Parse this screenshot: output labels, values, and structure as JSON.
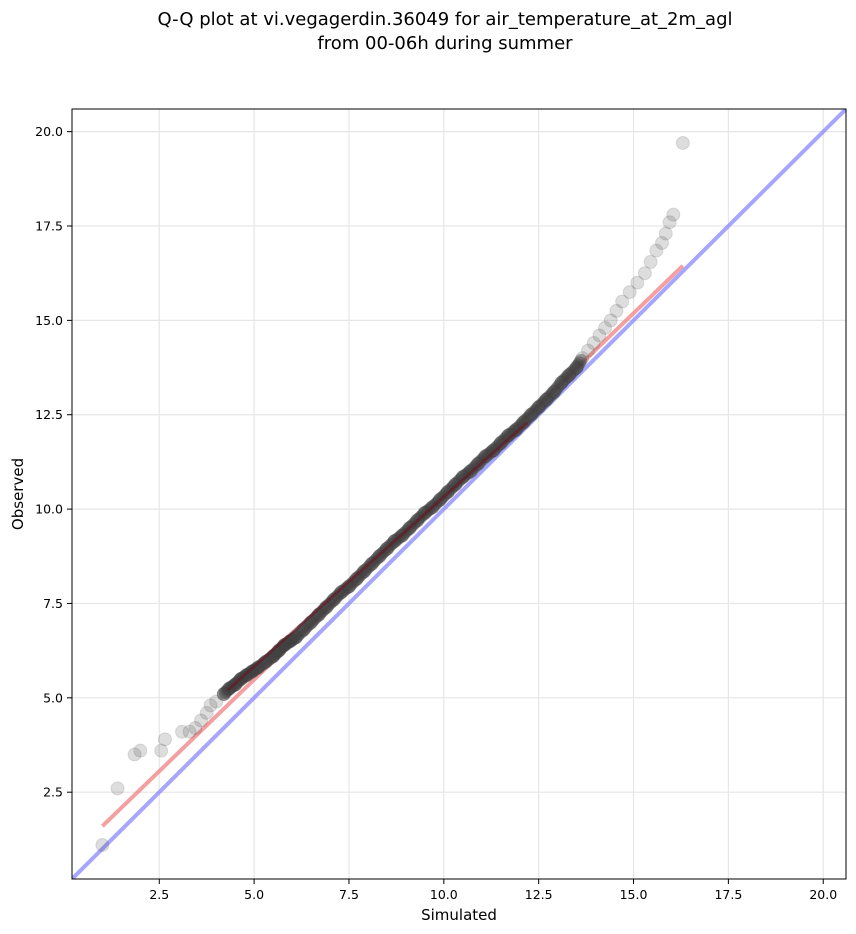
{
  "chart_data": {
    "type": "scatter",
    "title_line1": "Q-Q plot at vi.vegagerdin.36049 for air_temperature_at_2m_agl",
    "title_line2": "from 00-06h during summer",
    "xlabel": "Simulated",
    "ylabel": "Observed",
    "xlim": [
      0.2,
      20.6
    ],
    "ylim": [
      0.2,
      20.6
    ],
    "xticks": [
      2.5,
      5.0,
      7.5,
      10.0,
      12.5,
      15.0,
      17.5,
      20.0
    ],
    "yticks": [
      2.5,
      5.0,
      7.5,
      10.0,
      12.5,
      15.0,
      17.5,
      20.0
    ],
    "grid": true,
    "colors": {
      "points": "#404040",
      "fit_line": "#f08080",
      "identity_line": "#8080ff",
      "dense_core": "#6a1020"
    },
    "identity_line": {
      "x": [
        0.2,
        20.6
      ],
      "y": [
        0.2,
        20.6
      ]
    },
    "fit_line": {
      "x": [
        1.0,
        16.3
      ],
      "y": [
        1.6,
        16.45
      ]
    },
    "points": {
      "x": [
        1.0,
        1.4,
        1.85,
        2.0,
        2.55,
        2.65,
        3.1,
        3.3,
        3.45,
        3.6,
        3.75,
        3.85,
        4.0,
        4.2,
        4.35,
        4.5,
        4.65,
        4.8,
        4.95,
        5.1,
        5.3,
        5.5,
        5.65,
        5.8,
        5.95,
        6.1,
        6.3,
        6.5,
        6.7,
        6.9,
        7.1,
        7.3,
        7.5,
        7.7,
        7.9,
        8.1,
        8.3,
        8.5,
        8.7,
        8.9,
        9.1,
        9.3,
        9.5,
        9.7,
        9.9,
        10.1,
        10.3,
        10.5,
        10.7,
        10.9,
        11.1,
        11.3,
        11.5,
        11.7,
        11.9,
        12.1,
        12.3,
        12.5,
        12.7,
        12.9,
        13.1,
        13.3,
        13.5,
        13.65,
        13.8,
        13.95,
        14.1,
        14.25,
        14.4,
        14.55,
        14.7,
        14.9,
        15.1,
        15.3,
        15.45,
        15.6,
        15.75,
        15.85,
        15.95,
        16.05,
        16.3
      ],
      "y": [
        1.1,
        2.6,
        3.5,
        3.6,
        3.6,
        3.9,
        4.1,
        4.1,
        4.2,
        4.4,
        4.6,
        4.8,
        4.9,
        5.1,
        5.25,
        5.35,
        5.5,
        5.6,
        5.7,
        5.8,
        5.95,
        6.1,
        6.25,
        6.4,
        6.5,
        6.6,
        6.8,
        7.0,
        7.2,
        7.4,
        7.6,
        7.8,
        7.95,
        8.15,
        8.35,
        8.55,
        8.75,
        8.95,
        9.15,
        9.3,
        9.5,
        9.7,
        9.9,
        10.05,
        10.25,
        10.45,
        10.65,
        10.85,
        11.0,
        11.2,
        11.4,
        11.55,
        11.75,
        11.95,
        12.1,
        12.3,
        12.5,
        12.7,
        12.9,
        13.1,
        13.35,
        13.55,
        13.75,
        14.0,
        14.2,
        14.4,
        14.6,
        14.8,
        15.0,
        15.25,
        15.5,
        15.75,
        16.0,
        16.25,
        16.55,
        16.85,
        17.05,
        17.3,
        17.6,
        17.8,
        19.7
      ]
    }
  }
}
